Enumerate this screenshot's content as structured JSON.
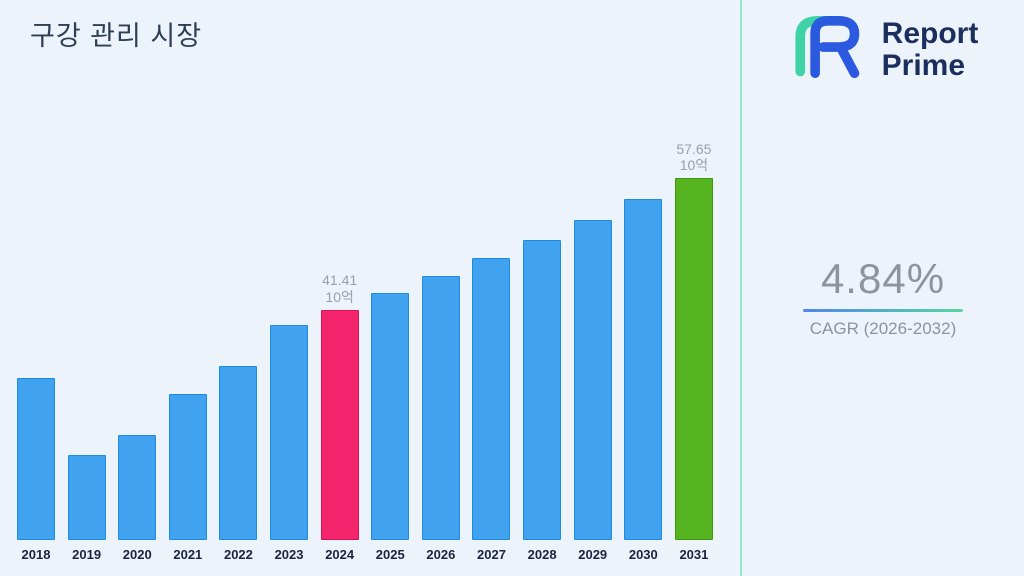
{
  "page": {
    "background": "#edf3fb",
    "divider_color": "#93e6c6"
  },
  "header": {
    "title": "구강 관리 시장"
  },
  "brand": {
    "name_line1": "Report",
    "name_line2": "Prime",
    "text_color": "#1b2f5e",
    "logo_blue": "#2b59e0",
    "logo_teal": "#3fd2a6"
  },
  "stats": {
    "value": "4.84%",
    "label": "CAGR (2026-2032)",
    "underline_from": "#4f86ec",
    "underline_to": "#56d89f"
  },
  "chart_data": {
    "type": "bar",
    "title": "구강 관리 시장",
    "xlabel": "",
    "ylabel": "",
    "unit_label": "10억",
    "grid": false,
    "legend": false,
    "ylim": [
      13,
      58
    ],
    "categories": [
      "2018",
      "2019",
      "2020",
      "2021",
      "2022",
      "2023",
      "2024",
      "2025",
      "2026",
      "2027",
      "2028",
      "2029",
      "2030",
      "2031"
    ],
    "values": [
      33.0,
      23.5,
      26.0,
      31.0,
      34.5,
      39.5,
      41.41,
      43.41,
      45.52,
      47.72,
      50.03,
      52.45,
      54.99,
      57.65
    ],
    "annotations": [
      {
        "category": "2024",
        "lines": [
          "41.41",
          "10억"
        ]
      },
      {
        "category": "2031",
        "lines": [
          "57.65",
          "10억"
        ]
      }
    ],
    "colors": {
      "default": "#41a3f0",
      "default_border": "#1e8be2",
      "fills": {
        "2024": "#f5256d",
        "2031": "#55b41f"
      },
      "borders": {
        "2024": "#d41457",
        "2031": "#3f990f"
      }
    },
    "annotation_text_color": "#9aa0ab",
    "axis_label_color": "#1c2340"
  }
}
